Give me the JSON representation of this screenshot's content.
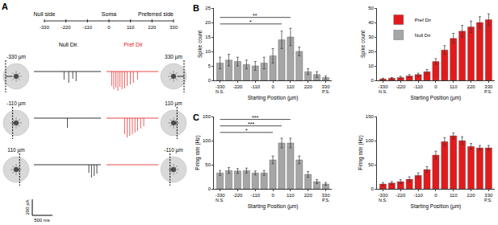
{
  "panel_labels": [
    "A",
    "B",
    "C"
  ],
  "panel_a": {
    "timeline": {
      "ticks": [
        -330,
        -220,
        -110,
        0,
        110,
        220,
        330
      ],
      "left": "Null side",
      "center": "Soma",
      "right": "Preferred side"
    },
    "columns": [
      {
        "text": "Null Dir.",
        "color": "#000000"
      },
      {
        "text": "Pref Dir",
        "color": "#e31a1c"
      }
    ],
    "rows": [
      {
        "left": "-330 µm",
        "right": "330 µm"
      },
      {
        "left": "-110 µm",
        "right": "110 µm"
      },
      {
        "left": "110 µm",
        "right": "-110 µm"
      }
    ],
    "scale_bar": {
      "y": "200 pA",
      "x": "500 ms"
    }
  },
  "chart_data": [
    {
      "type": "bar",
      "panel": "B",
      "categories": [
        "-330",
        null,
        "-220",
        null,
        "-110",
        null,
        "0",
        null,
        "110",
        null,
        "220",
        null,
        "330"
      ],
      "x_label": "Starting Position (µm)",
      "y_label": "Spike count",
      "ylim": [
        0,
        25
      ],
      "yticks": [
        0,
        5,
        10,
        15,
        20,
        25
      ],
      "grid": false,
      "series": [
        {
          "name": "Null Dir",
          "color": "#a6a6a6",
          "values": [
            6,
            7,
            6.5,
            5.5,
            5,
            6,
            8.5,
            14,
            15,
            10,
            3,
            2,
            1
          ],
          "errors": [
            2,
            2,
            1.5,
            1.5,
            1.5,
            2,
            2.5,
            3,
            3,
            1.5,
            1,
            1,
            0.5
          ]
        }
      ],
      "annotations": [
        {
          "text": "N.S.",
          "category": 0
        },
        {
          "text": "P.S.",
          "category": 12
        }
      ],
      "brackets": [
        {
          "from": 0,
          "to": 7,
          "label": "*"
        },
        {
          "from": 0,
          "to": 8,
          "label": "**"
        }
      ]
    },
    {
      "type": "bar",
      "categories": [
        "-330",
        null,
        "-220",
        null,
        "-110",
        null,
        "0",
        null,
        "110",
        null,
        "220",
        null,
        "330"
      ],
      "x_label": "Starting Position (µm)",
      "y_label": "Spike count",
      "ylim": [
        0,
        50
      ],
      "yticks": [
        0,
        10,
        20,
        30,
        40,
        50
      ],
      "grid": false,
      "legend": "upper left",
      "series": [
        {
          "name": "Pref Dir",
          "color": "#e31a1c",
          "values": [
            1,
            1.5,
            2,
            3,
            4,
            6,
            13,
            21,
            29,
            34,
            37,
            40,
            42
          ],
          "errors": [
            0.5,
            0.5,
            0.8,
            1,
            1,
            1.5,
            2,
            3,
            3.5,
            4,
            4,
            4,
            4
          ]
        }
      ],
      "annotations": [
        {
          "text": "N.S.",
          "category": 0
        },
        {
          "text": "P.S.",
          "category": 12
        }
      ]
    },
    {
      "type": "bar",
      "panel": "C",
      "categories": [
        "-330",
        null,
        "-220",
        null,
        "-110",
        null,
        "0",
        null,
        "110",
        null,
        "220",
        null,
        "330"
      ],
      "x_label": "Starting Position (µm)",
      "y_label": "Firing rate (Hz)",
      "ylim": [
        0,
        150
      ],
      "yticks": [
        0,
        50,
        100,
        150
      ],
      "grid": false,
      "series": [
        {
          "name": "Null Dir",
          "color": "#a6a6a6",
          "values": [
            33,
            38,
            37,
            38,
            33,
            33,
            60,
            95,
            95,
            60,
            30,
            15,
            10
          ],
          "errors": [
            5,
            6,
            5,
            5,
            4,
            5,
            8,
            10,
            10,
            8,
            6,
            4,
            3
          ]
        }
      ],
      "annotations": [
        {
          "text": "N.S.",
          "category": 0
        },
        {
          "text": "P.S.",
          "category": 12
        }
      ],
      "brackets": [
        {
          "from": 0,
          "to": 6,
          "label": "*"
        },
        {
          "from": 0,
          "to": 7,
          "label": "***"
        },
        {
          "from": 0,
          "to": 8,
          "label": "***"
        }
      ]
    },
    {
      "type": "bar",
      "categories": [
        "-330",
        null,
        "-220",
        null,
        "-110",
        null,
        "0",
        null,
        "110",
        null,
        "220",
        null,
        "330"
      ],
      "x_label": "Starting Position (µm)",
      "y_label": "Firing rate (Hz)",
      "ylim": [
        0,
        150
      ],
      "yticks": [
        0,
        50,
        100,
        150
      ],
      "grid": false,
      "series": [
        {
          "name": "Pref Dir",
          "color": "#e31a1c",
          "values": [
            10,
            12,
            15,
            20,
            28,
            40,
            70,
            98,
            110,
            100,
            88,
            85,
            85
          ],
          "errors": [
            3,
            3,
            4,
            5,
            5,
            6,
            8,
            8,
            6,
            8,
            6,
            5,
            5
          ]
        }
      ],
      "annotations": [
        {
          "text": "N.S.",
          "category": 0
        },
        {
          "text": "P.S.",
          "category": 12
        }
      ]
    }
  ]
}
